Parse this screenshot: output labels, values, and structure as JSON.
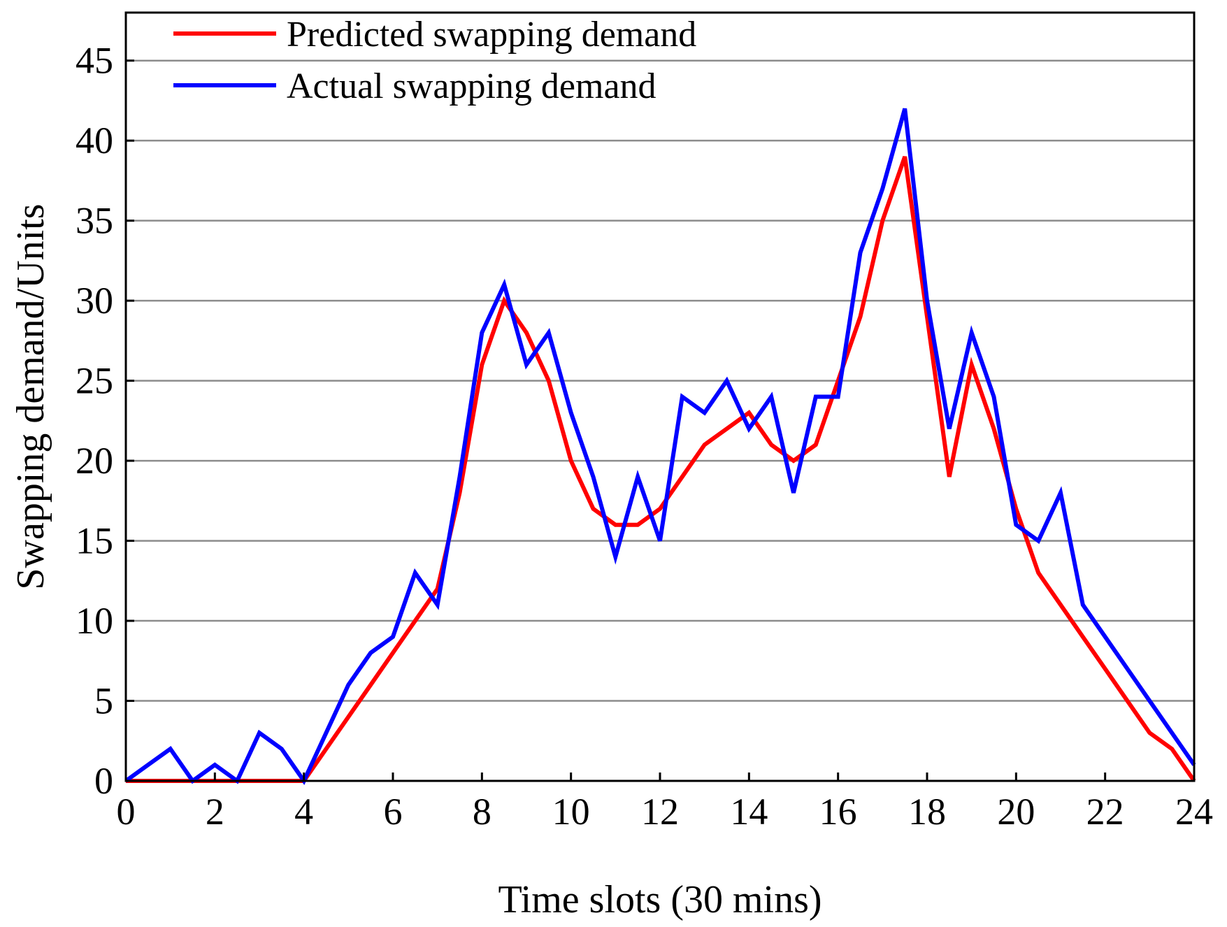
{
  "chart_data": {
    "type": "line",
    "xlabel": "Time slots (30 mins)",
    "ylabel": "Swapping demand/Units",
    "xlim": [
      0,
      24
    ],
    "ylim": [
      0,
      48
    ],
    "xticks": [
      0,
      2,
      4,
      6,
      8,
      10,
      12,
      14,
      16,
      18,
      20,
      22,
      24
    ],
    "yticks": [
      0,
      5,
      10,
      15,
      20,
      25,
      30,
      35,
      40,
      45
    ],
    "grid": "horizontal",
    "legend_position": "top-left",
    "x": [
      0,
      0.5,
      1,
      1.5,
      2,
      2.5,
      3,
      3.5,
      4,
      4.5,
      5,
      5.5,
      6,
      6.5,
      7,
      7.5,
      8,
      8.5,
      9,
      9.5,
      10,
      10.5,
      11,
      11.5,
      12,
      12.5,
      13,
      13.5,
      14,
      14.5,
      15,
      15.5,
      16,
      16.5,
      17,
      17.5,
      18,
      18.5,
      19,
      19.5,
      20,
      20.5,
      21,
      21.5,
      22,
      22.5,
      23,
      23.5,
      24
    ],
    "series": [
      {
        "name": "Predicted swapping demand",
        "color": "#ff0000",
        "values": [
          0,
          0,
          0,
          0,
          0,
          0,
          0,
          0,
          0,
          2,
          4,
          6,
          8,
          10,
          12,
          18,
          26,
          30,
          28,
          25,
          20,
          17,
          16,
          16,
          17,
          19,
          21,
          22,
          23,
          21,
          20,
          21,
          25,
          29,
          35,
          39,
          29,
          19,
          26,
          22,
          17,
          13,
          11,
          9,
          7,
          5,
          3,
          2,
          0
        ]
      },
      {
        "name": "Actual swapping demand",
        "color": "#0000ff",
        "values": [
          0,
          1,
          2,
          0,
          1,
          0,
          3,
          2,
          0,
          3,
          6,
          8,
          9,
          13,
          11,
          19,
          28,
          31,
          26,
          28,
          23,
          19,
          14,
          19,
          15,
          24,
          23,
          25,
          22,
          24,
          18,
          24,
          24,
          33,
          37,
          42,
          30,
          22,
          28,
          24,
          16,
          15,
          18,
          11,
          9,
          7,
          5,
          3,
          1
        ]
      }
    ]
  }
}
